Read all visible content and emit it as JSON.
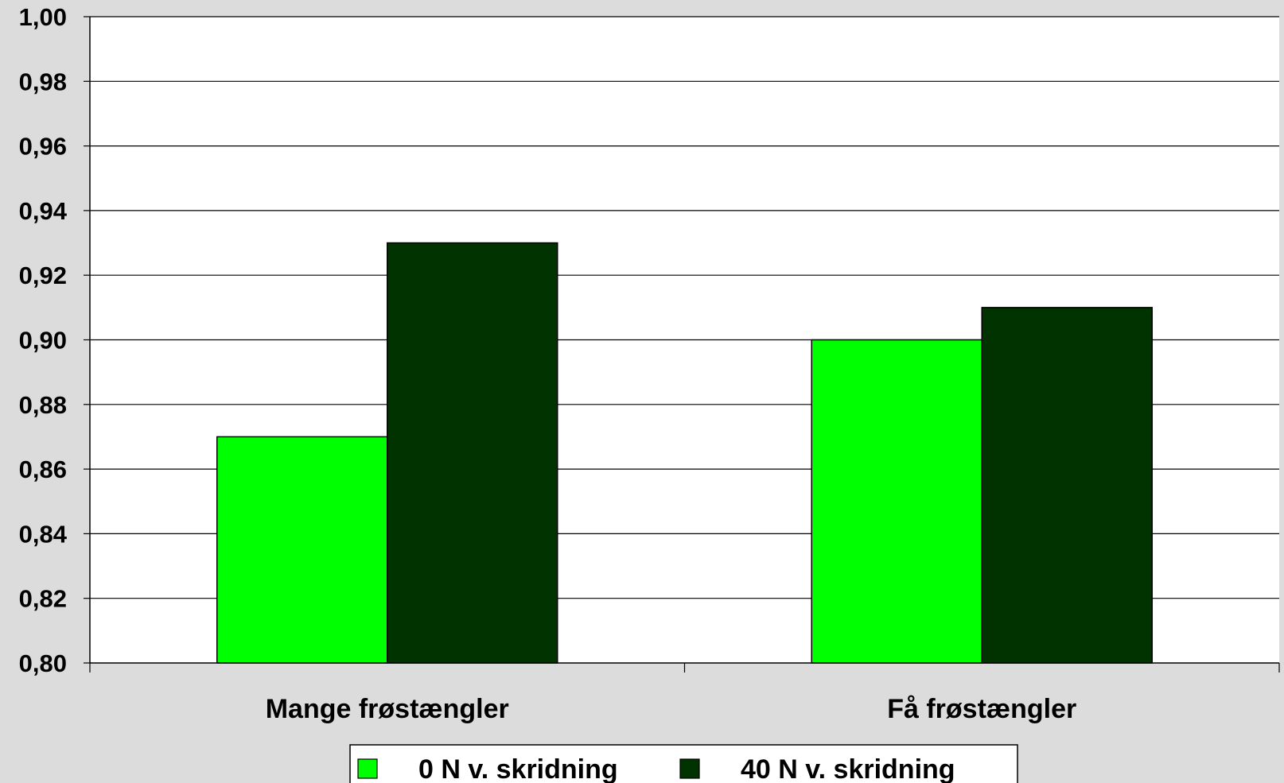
{
  "chart_data": {
    "type": "bar",
    "categories": [
      "Mange frøstængler",
      "Få frøstængler"
    ],
    "series": [
      {
        "name": "0 N v. skridning",
        "values": [
          0.87,
          0.9
        ],
        "color": "#00ff00"
      },
      {
        "name": "40 N v. skridning",
        "values": [
          0.93,
          0.91
        ],
        "color": "#003300"
      }
    ],
    "ylim": [
      0.8,
      1.0
    ],
    "y_ticks": [
      "0,80",
      "0,82",
      "0,84",
      "0,86",
      "0,88",
      "0,90",
      "0,92",
      "0,94",
      "0,96",
      "0,98",
      "1,00"
    ],
    "grid": true,
    "legend_position": "bottom",
    "plot_background": "#ffffff",
    "page_background": "#dcdcdc"
  }
}
